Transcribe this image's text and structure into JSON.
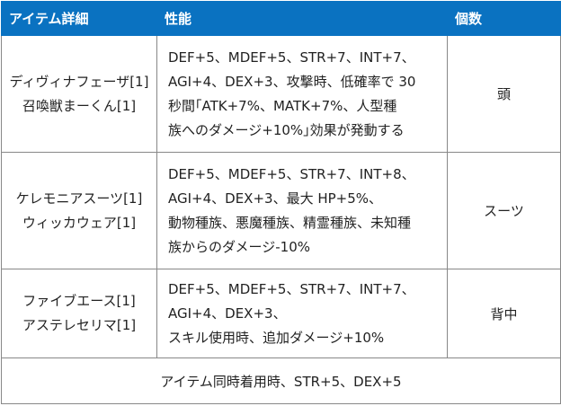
{
  "header": {
    "col_item": "アイテム詳細",
    "col_perf": "性能",
    "col_qty": "個数"
  },
  "rows": [
    {
      "names": [
        "ディヴィナフェーザ[1]",
        "召喚獣まーくん[1]"
      ],
      "perf": [
        "DEF+5、MDEF+5、STR+7、INT+7、",
        "AGI+4、DEX+3、攻撃時、低確率で 30",
        "秒間｢ATK+7%、MATK+7%、人型種",
        "族へのダメージ+10%｣効果が発動する"
      ],
      "slot": "頭"
    },
    {
      "names": [
        "ケレモニアスーツ[1]",
        "ウィッカウェア[1]"
      ],
      "perf": [
        "DEF+5、MDEF+5、STR+7、INT+8、",
        "AGI+4、DEX+3、最大 HP+5%、",
        "動物種族、悪魔種族、精霊種族、未知種",
        "族からのダメージ-10%"
      ],
      "slot": "スーツ"
    },
    {
      "names": [
        "ファイブエース[1]",
        "アステレセリマ[1]"
      ],
      "perf": [
        "DEF+5、MDEF+5、STR+7、INT+7、",
        "AGI+4、DEX+3、",
        "スキル使用時、追加ダメージ+10%"
      ],
      "slot": "背中"
    }
  ],
  "set_bonus": "アイテム同時着用時、STR+5、DEX+5",
  "colors": {
    "header_bg": "#0a72c1",
    "header_text": "#ffffff",
    "border": "#888888"
  }
}
